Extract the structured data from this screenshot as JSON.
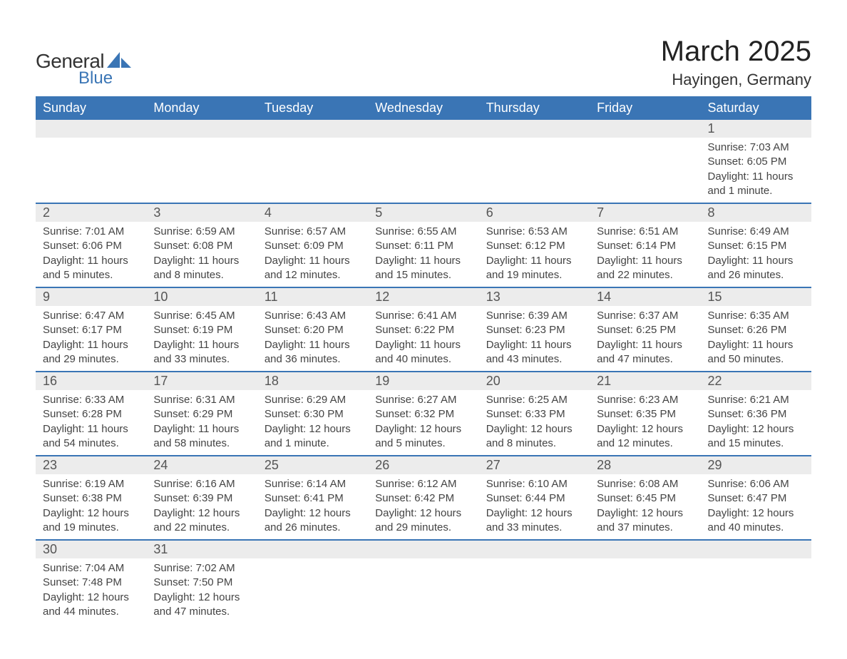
{
  "logo": {
    "text_general": "General",
    "text_blue": "Blue",
    "icon_color": "#3a75b5"
  },
  "title": "March 2025",
  "location": "Hayingen, Germany",
  "colors": {
    "header_bg": "#3a75b5",
    "header_text": "#ffffff",
    "row_divider": "#3a75b5",
    "daynum_bg": "#ececec",
    "body_text": "#444444",
    "page_bg": "#ffffff"
  },
  "typography": {
    "title_fontsize": 40,
    "location_fontsize": 22,
    "header_fontsize": 18,
    "daynum_fontsize": 18,
    "body_fontsize": 15
  },
  "weekdays": [
    "Sunday",
    "Monday",
    "Tuesday",
    "Wednesday",
    "Thursday",
    "Friday",
    "Saturday"
  ],
  "labels": {
    "sunrise": "Sunrise: ",
    "sunset": "Sunset: ",
    "daylight": "Daylight: "
  },
  "weeks": [
    [
      null,
      null,
      null,
      null,
      null,
      null,
      {
        "d": "1",
        "sunrise": "7:03 AM",
        "sunset": "6:05 PM",
        "daylight": "11 hours and 1 minute."
      }
    ],
    [
      {
        "d": "2",
        "sunrise": "7:01 AM",
        "sunset": "6:06 PM",
        "daylight": "11 hours and 5 minutes."
      },
      {
        "d": "3",
        "sunrise": "6:59 AM",
        "sunset": "6:08 PM",
        "daylight": "11 hours and 8 minutes."
      },
      {
        "d": "4",
        "sunrise": "6:57 AM",
        "sunset": "6:09 PM",
        "daylight": "11 hours and 12 minutes."
      },
      {
        "d": "5",
        "sunrise": "6:55 AM",
        "sunset": "6:11 PM",
        "daylight": "11 hours and 15 minutes."
      },
      {
        "d": "6",
        "sunrise": "6:53 AM",
        "sunset": "6:12 PM",
        "daylight": "11 hours and 19 minutes."
      },
      {
        "d": "7",
        "sunrise": "6:51 AM",
        "sunset": "6:14 PM",
        "daylight": "11 hours and 22 minutes."
      },
      {
        "d": "8",
        "sunrise": "6:49 AM",
        "sunset": "6:15 PM",
        "daylight": "11 hours and 26 minutes."
      }
    ],
    [
      {
        "d": "9",
        "sunrise": "6:47 AM",
        "sunset": "6:17 PM",
        "daylight": "11 hours and 29 minutes."
      },
      {
        "d": "10",
        "sunrise": "6:45 AM",
        "sunset": "6:19 PM",
        "daylight": "11 hours and 33 minutes."
      },
      {
        "d": "11",
        "sunrise": "6:43 AM",
        "sunset": "6:20 PM",
        "daylight": "11 hours and 36 minutes."
      },
      {
        "d": "12",
        "sunrise": "6:41 AM",
        "sunset": "6:22 PM",
        "daylight": "11 hours and 40 minutes."
      },
      {
        "d": "13",
        "sunrise": "6:39 AM",
        "sunset": "6:23 PM",
        "daylight": "11 hours and 43 minutes."
      },
      {
        "d": "14",
        "sunrise": "6:37 AM",
        "sunset": "6:25 PM",
        "daylight": "11 hours and 47 minutes."
      },
      {
        "d": "15",
        "sunrise": "6:35 AM",
        "sunset": "6:26 PM",
        "daylight": "11 hours and 50 minutes."
      }
    ],
    [
      {
        "d": "16",
        "sunrise": "6:33 AM",
        "sunset": "6:28 PM",
        "daylight": "11 hours and 54 minutes."
      },
      {
        "d": "17",
        "sunrise": "6:31 AM",
        "sunset": "6:29 PM",
        "daylight": "11 hours and 58 minutes."
      },
      {
        "d": "18",
        "sunrise": "6:29 AM",
        "sunset": "6:30 PM",
        "daylight": "12 hours and 1 minute."
      },
      {
        "d": "19",
        "sunrise": "6:27 AM",
        "sunset": "6:32 PM",
        "daylight": "12 hours and 5 minutes."
      },
      {
        "d": "20",
        "sunrise": "6:25 AM",
        "sunset": "6:33 PM",
        "daylight": "12 hours and 8 minutes."
      },
      {
        "d": "21",
        "sunrise": "6:23 AM",
        "sunset": "6:35 PM",
        "daylight": "12 hours and 12 minutes."
      },
      {
        "d": "22",
        "sunrise": "6:21 AM",
        "sunset": "6:36 PM",
        "daylight": "12 hours and 15 minutes."
      }
    ],
    [
      {
        "d": "23",
        "sunrise": "6:19 AM",
        "sunset": "6:38 PM",
        "daylight": "12 hours and 19 minutes."
      },
      {
        "d": "24",
        "sunrise": "6:16 AM",
        "sunset": "6:39 PM",
        "daylight": "12 hours and 22 minutes."
      },
      {
        "d": "25",
        "sunrise": "6:14 AM",
        "sunset": "6:41 PM",
        "daylight": "12 hours and 26 minutes."
      },
      {
        "d": "26",
        "sunrise": "6:12 AM",
        "sunset": "6:42 PM",
        "daylight": "12 hours and 29 minutes."
      },
      {
        "d": "27",
        "sunrise": "6:10 AM",
        "sunset": "6:44 PM",
        "daylight": "12 hours and 33 minutes."
      },
      {
        "d": "28",
        "sunrise": "6:08 AM",
        "sunset": "6:45 PM",
        "daylight": "12 hours and 37 minutes."
      },
      {
        "d": "29",
        "sunrise": "6:06 AM",
        "sunset": "6:47 PM",
        "daylight": "12 hours and 40 minutes."
      }
    ],
    [
      {
        "d": "30",
        "sunrise": "7:04 AM",
        "sunset": "7:48 PM",
        "daylight": "12 hours and 44 minutes."
      },
      {
        "d": "31",
        "sunrise": "7:02 AM",
        "sunset": "7:50 PM",
        "daylight": "12 hours and 47 minutes."
      },
      null,
      null,
      null,
      null,
      null
    ]
  ]
}
